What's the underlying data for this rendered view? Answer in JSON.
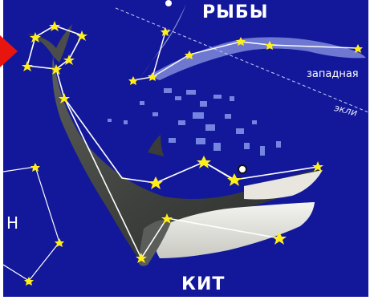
{
  "labels": {
    "constellation_top": "РЫБЫ",
    "constellation_main": "КИТ",
    "fish_part": "западная",
    "ecliptic": "экли",
    "edge_letter": "Н"
  },
  "colors": {
    "sky": "#13189a",
    "star": "#ffee1a",
    "line": "#ffffff",
    "pointer": "#e8140e"
  },
  "icons": {
    "star": "star-icon",
    "pointer": "pointer-arrow-icon"
  }
}
